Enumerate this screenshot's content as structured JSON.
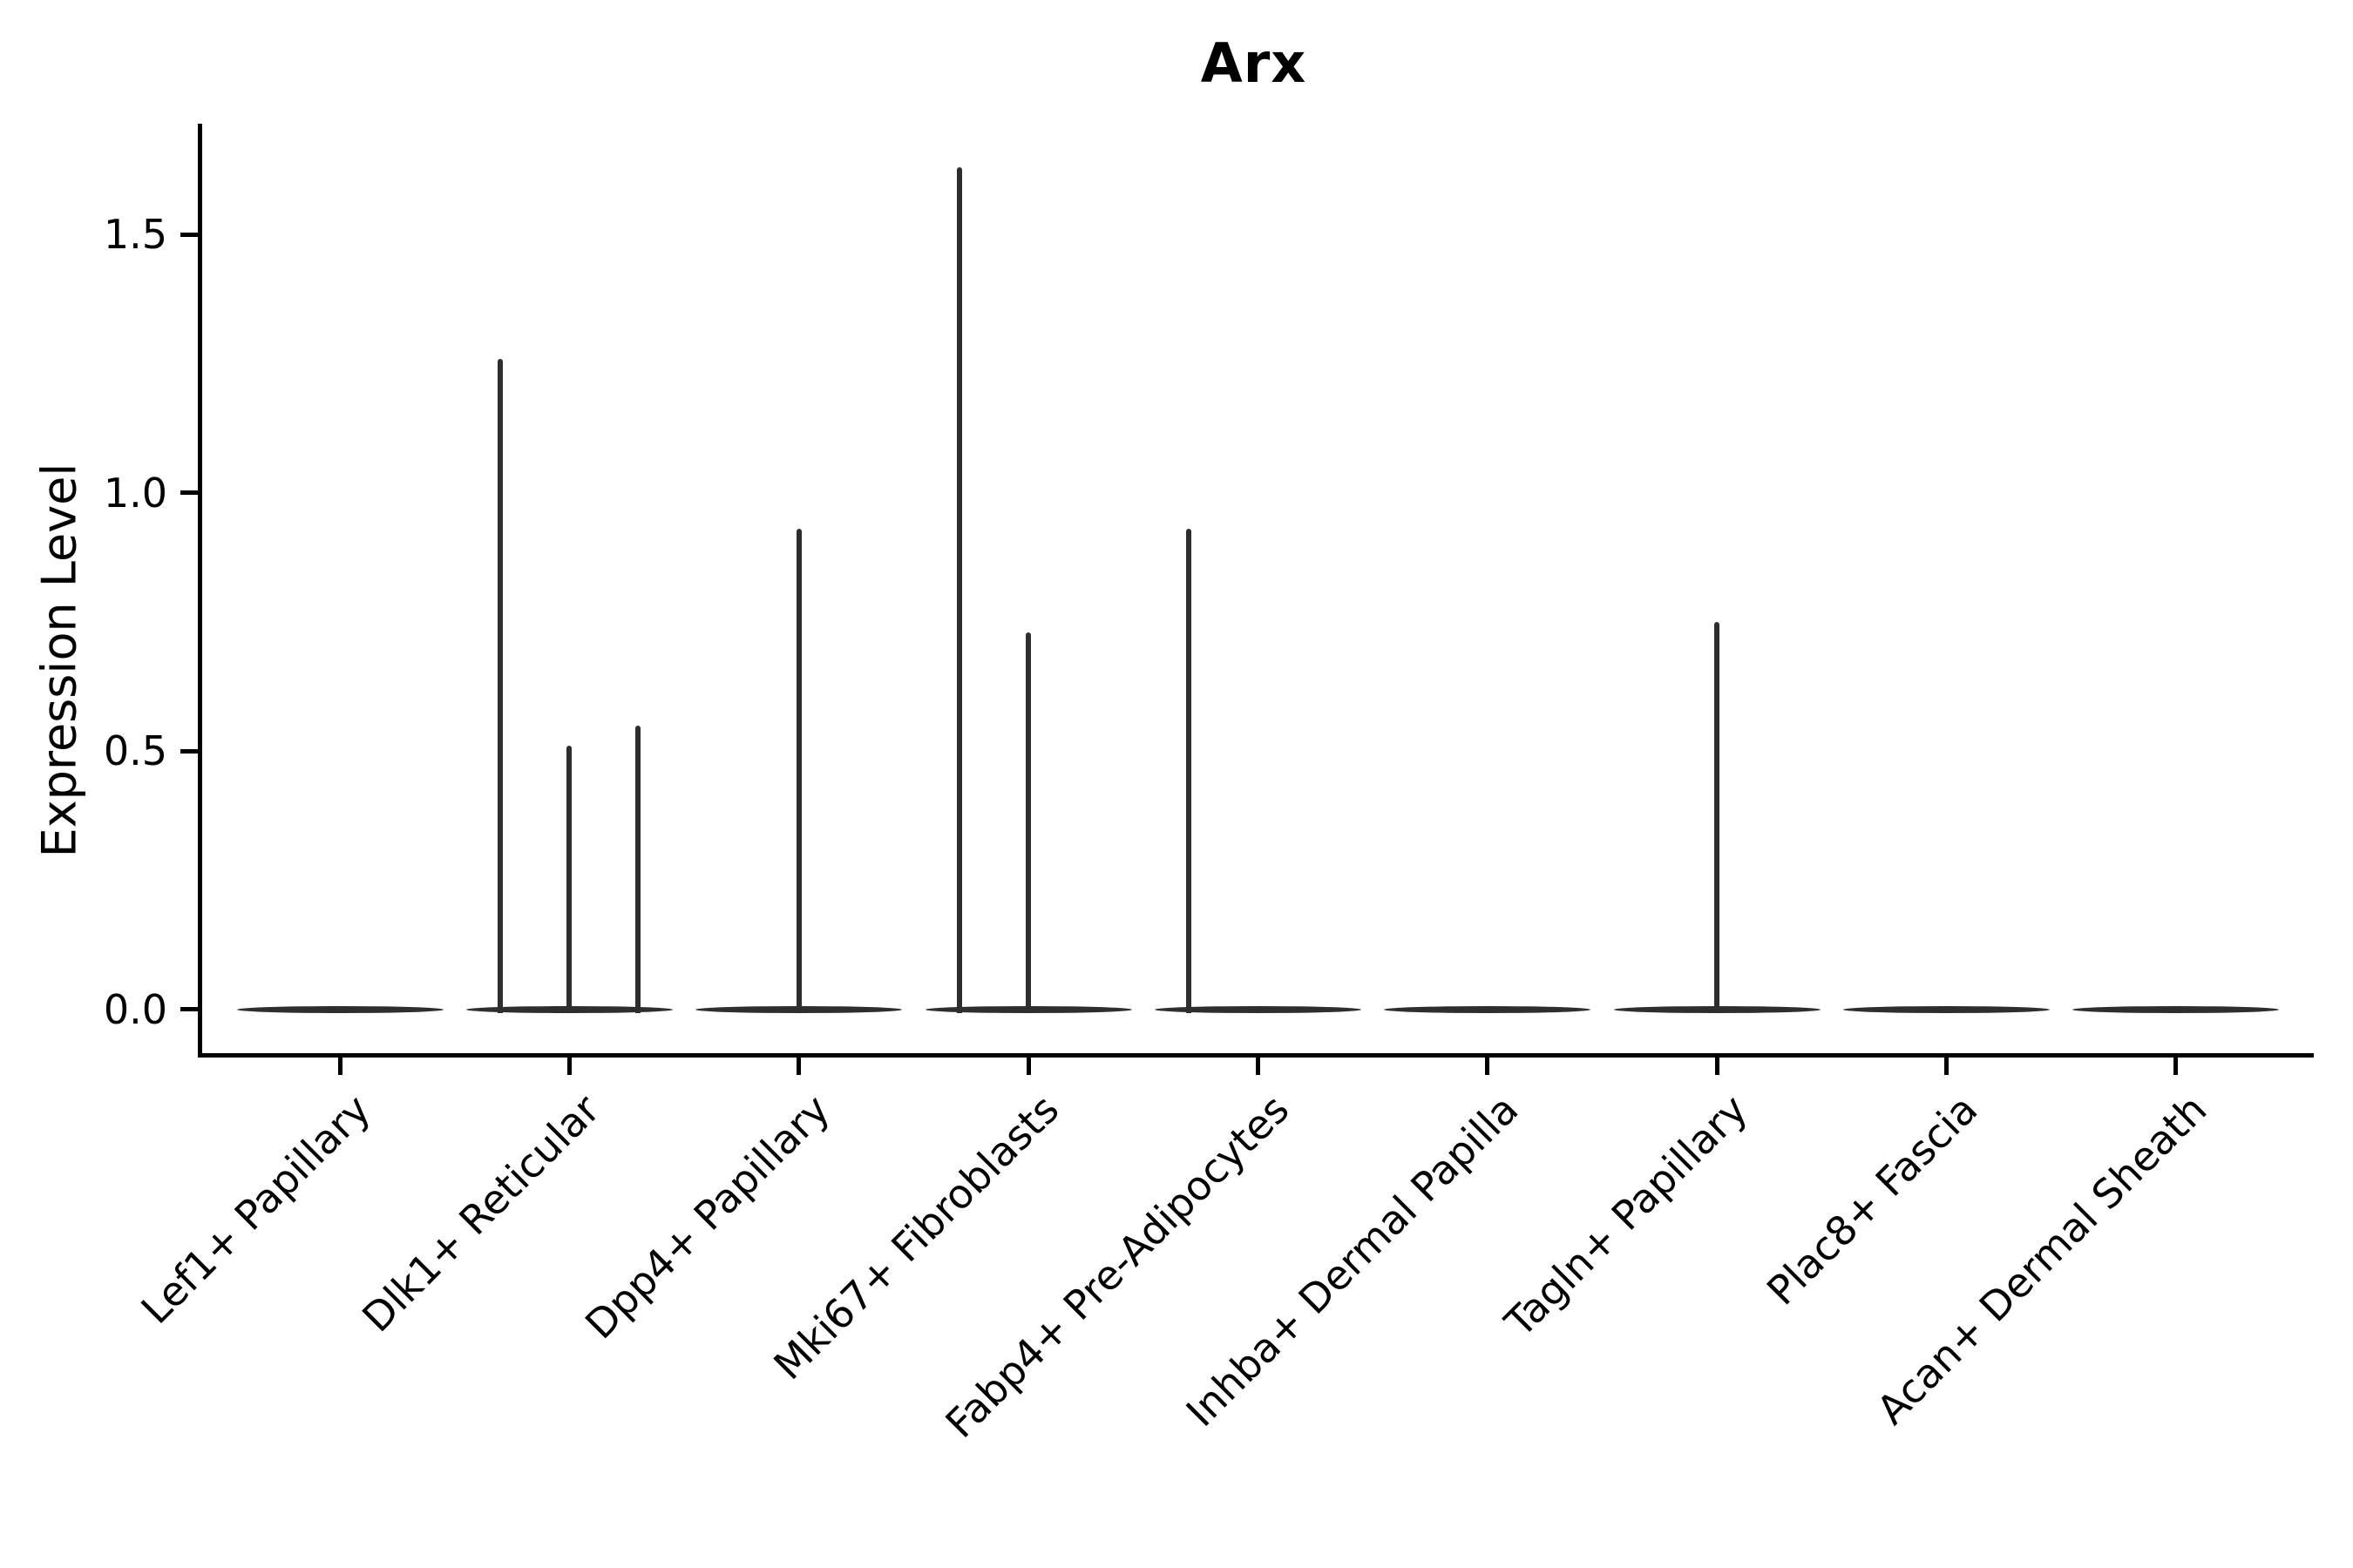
{
  "title": "Arx",
  "chart_data": {
    "type": "violin",
    "title": "Arx",
    "xlabel": "",
    "ylabel": "Expression Level",
    "grid": false,
    "legend": "none",
    "xlim": [
      -0.6,
      8.6
    ],
    "ylim": [
      -0.085,
      1.715
    ],
    "yticks": [
      {
        "value": 0.0,
        "label": "0.0"
      },
      {
        "value": 0.5,
        "label": "0.5"
      },
      {
        "value": 1.0,
        "label": "1.0"
      },
      {
        "value": 1.5,
        "label": "1.5"
      }
    ],
    "categories": [
      "Lef1+ Papillary",
      "Dlk1+ Reticular",
      "Dpp4+ Papillary",
      "Mki67+ Fibroblasts",
      "Fabp4+ Pre-Adipocytes",
      "Inhba+ Dermal Papilla",
      "Tagln+ Papillary",
      "Plac8+ Fascia",
      "Acan+ Dermal Sheath"
    ],
    "violin_width": 0.9,
    "baseline_value": 0.0,
    "series": [
      {
        "category": "Lef1+ Papillary",
        "spikes": []
      },
      {
        "category": "Dlk1+ Reticular",
        "spikes": [
          {
            "offset": -0.3,
            "value": 1.26
          },
          {
            "offset": 0.0,
            "value": 0.51
          },
          {
            "offset": 0.3,
            "value": 0.55
          }
        ]
      },
      {
        "category": "Dpp4+ Papillary",
        "spikes": [
          {
            "offset": 0.0,
            "value": 0.93
          }
        ]
      },
      {
        "category": "Mki67+ Fibroblasts",
        "spikes": [
          {
            "offset": -0.3,
            "value": 1.63
          },
          {
            "offset": 0.0,
            "value": 0.73
          }
        ]
      },
      {
        "category": "Fabp4+ Pre-Adipocytes",
        "spikes": [
          {
            "offset": -0.3,
            "value": 0.93
          }
        ]
      },
      {
        "category": "Inhba+ Dermal Papilla",
        "spikes": []
      },
      {
        "category": "Tagln+ Papillary",
        "spikes": [
          {
            "offset": 0.0,
            "value": 0.75
          }
        ]
      },
      {
        "category": "Plac8+ Fascia",
        "spikes": []
      },
      {
        "category": "Acan+ Dermal Sheath",
        "spikes": []
      }
    ],
    "colors": {
      "violin_line": "#2e2e2e",
      "axis": "#000000",
      "text": "#000000",
      "background": "#ffffff"
    }
  }
}
